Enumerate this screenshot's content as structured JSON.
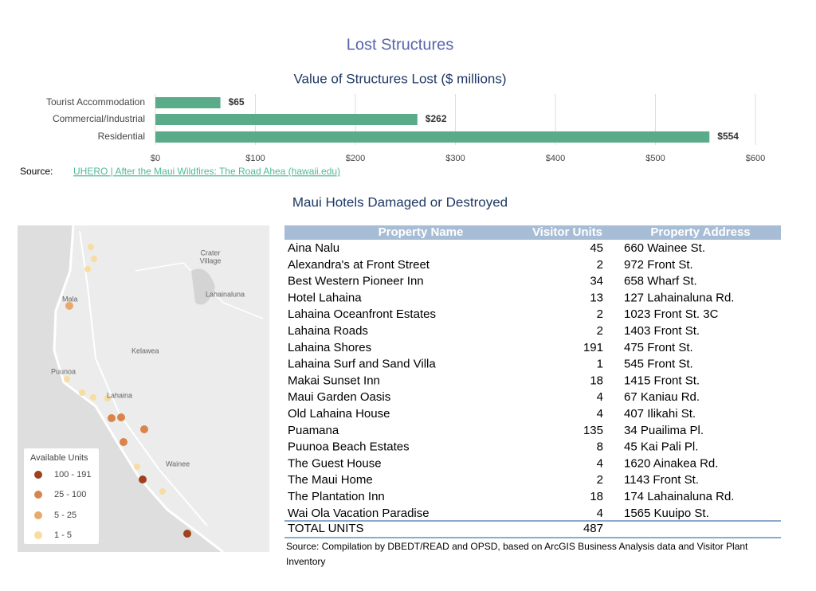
{
  "header": {
    "title": "Lost Structures"
  },
  "chart_data": {
    "type": "bar",
    "orientation": "horizontal",
    "title": "Value of Structures Lost ($ millions)",
    "categories": [
      "Tourist Accommodation",
      "Commercial/Industrial",
      "Residential"
    ],
    "values": [
      65,
      262,
      554
    ],
    "value_labels": [
      "$65",
      "$262",
      "$554"
    ],
    "color": "#5aab8a",
    "xlim": [
      0,
      600
    ],
    "xticks": [
      {
        "value": 0,
        "label": "$0"
      },
      {
        "value": 100,
        "label": "$100"
      },
      {
        "value": 200,
        "label": "$200"
      },
      {
        "value": 300,
        "label": "$300"
      },
      {
        "value": 400,
        "label": "$400"
      },
      {
        "value": 500,
        "label": "$500"
      },
      {
        "value": 600,
        "label": "$600"
      }
    ],
    "grid": true
  },
  "chart_source": {
    "label": "Source:",
    "link": "UHERO | After the Maui Wildfires: The Road Ahea (hawaii.edu)"
  },
  "section": {
    "title": "Maui Hotels Damaged or Destroyed"
  },
  "map": {
    "labels": [
      "Crater",
      "Village",
      "Lahainaluna",
      "Mala",
      "Kelawea",
      "Puunoa",
      "Lahaina",
      "Wainee"
    ],
    "legend": {
      "title": "Available Units",
      "items": [
        "100 - 191",
        "25 - 100",
        "5 - 25",
        "1 - 5"
      ]
    }
  },
  "table": {
    "columns": [
      "Property Name",
      "Visitor Units",
      "Property Address"
    ],
    "rows": [
      [
        "Aina Nalu",
        45,
        "660 Wainee St."
      ],
      [
        "Alexandra's at Front Street",
        2,
        "972 Front St."
      ],
      [
        "Best Western Pioneer Inn",
        34,
        "658 Wharf St."
      ],
      [
        "Hotel Lahaina",
        13,
        "127 Lahainaluna Rd."
      ],
      [
        "Lahaina Oceanfront Estates",
        2,
        "1023 Front St. 3C"
      ],
      [
        "Lahaina Roads",
        2,
        "1403 Front St."
      ],
      [
        "Lahaina Shores",
        191,
        "475 Front St."
      ],
      [
        "Lahaina Surf and Sand Villa",
        1,
        "545 Front St."
      ],
      [
        "Makai Sunset Inn",
        18,
        "1415 Front St."
      ],
      [
        "Maui Garden Oasis",
        4,
        "67 Kaniau Rd."
      ],
      [
        "Old Lahaina House",
        4,
        "407 Ilikahi St."
      ],
      [
        "Puamana",
        135,
        "34 Puailima Pl."
      ],
      [
        "Puunoa Beach Estates",
        8,
        "45 Kai Pali Pl."
      ],
      [
        "The Guest House",
        4,
        "1620 Ainakea Rd."
      ],
      [
        "The Maui Home",
        2,
        "1143 Front St."
      ],
      [
        "The Plantation Inn",
        18,
        "174 Lahainaluna Rd."
      ],
      [
        "Wai Ola Vacation Paradise",
        4,
        "1565 Kuuipo St."
      ]
    ],
    "total": [
      "TOTAL UNITS",
      487
    ],
    "source": "Source: Compilation by DBEDT/READ and OPSD, based on ArcGIS Business Analysis data and Visitor Plant Inventory"
  }
}
